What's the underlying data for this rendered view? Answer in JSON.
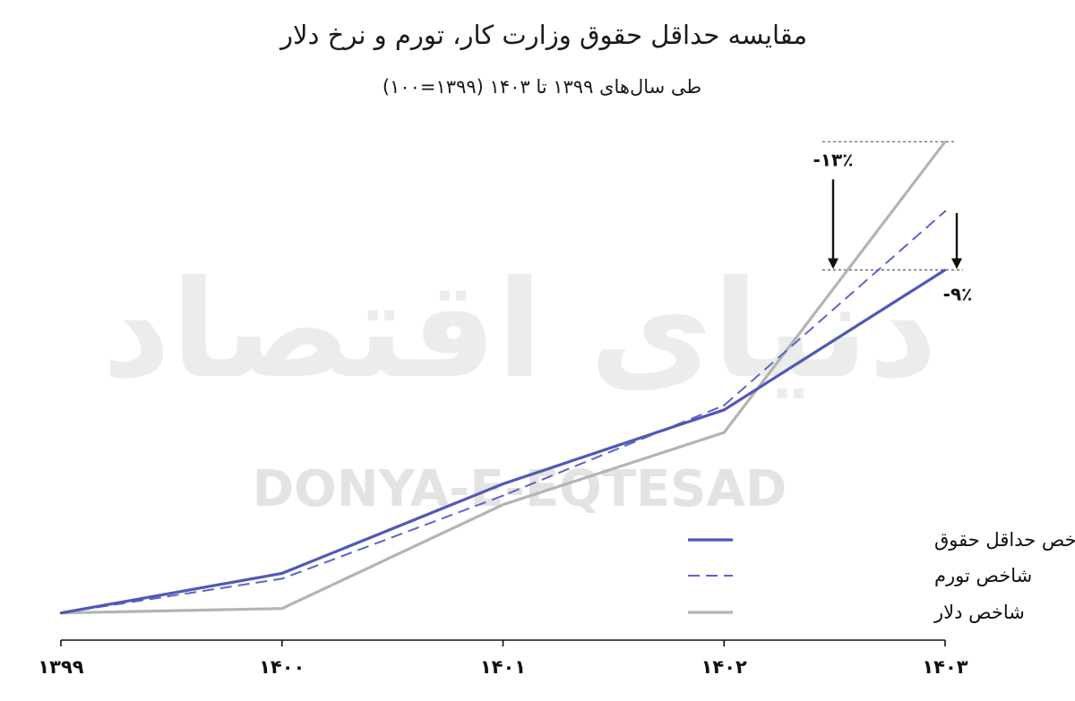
{
  "header": {
    "title": "مقایسه حداقل حقوق وزارت کار، تورم و نرخ دلار",
    "subtitle": "طی سال‌های ۱۳۹۹ تا ۱۴۰۳ (۱۳۹۹=۱۰۰)"
  },
  "watermark": {
    "latin": "DONYA-E-EQTESAD",
    "persian": "دنیای اقتصاد"
  },
  "chart_data": {
    "type": "line",
    "categories": [
      "۱۳۹۹",
      "۱۴۰۰",
      "۱۴۰۱",
      "۱۴۰۲",
      "۱۴۰۳"
    ],
    "series": [
      {
        "name": "شاخص حداقل حقوق",
        "values": [
          100,
          144,
          243,
          325,
          480
        ],
        "color": "#4f59b5",
        "style": "solid"
      },
      {
        "name": "شاخص تورم",
        "values": [
          100,
          138,
          230,
          330,
          545
        ],
        "color": "#5a66c7",
        "style": "dashed"
      },
      {
        "name": "شاخص دلار",
        "values": [
          100,
          105,
          220,
          300,
          622
        ],
        "color": "#b4b4b4",
        "style": "solid"
      }
    ],
    "ylim": [
      70,
      660
    ],
    "grid": false,
    "legend_position": "bottom-right",
    "annotations": [
      {
        "text": "-۱۳٪",
        "from_series": "شاخص دلار",
        "to_series": "شاخص حداقل حقوق"
      },
      {
        "text": "-۹٪",
        "from_series": "شاخص تورم",
        "to_series": "شاخص حداقل حقوق"
      }
    ]
  }
}
